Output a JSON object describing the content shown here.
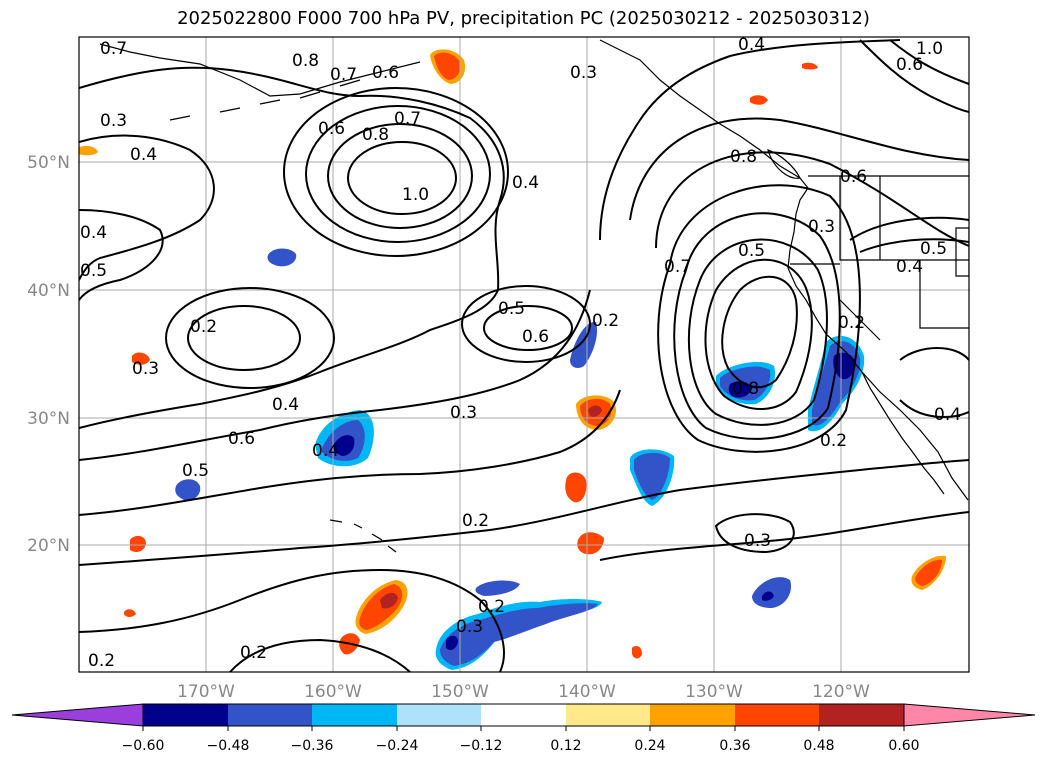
{
  "title": "2025022800 F000 700 hPa PV, precipitation PC (2025030212 - 2025030312)",
  "map": {
    "lat_ticks": [
      "50°N",
      "40°N",
      "30°N",
      "20°N"
    ],
    "lon_ticks": [
      "170°W",
      "160°W",
      "150°W",
      "140°W",
      "130°W",
      "120°W"
    ],
    "gridlines": true
  },
  "contours": {
    "variable": "700 hPa PV",
    "labels": [
      "0.7",
      "0.8",
      "0.7",
      "0.6",
      "0.3",
      "0.4",
      "0.6",
      "0.8",
      "0.7",
      "1.0",
      "0.4",
      "0.5",
      "0.4",
      "0.2",
      "0.3",
      "0.4",
      "0.6",
      "0.5",
      "0.5",
      "0.6",
      "0.3",
      "0.2",
      "0.7",
      "0.5",
      "0.3",
      "0.4",
      "0.2",
      "0.6",
      "0.3",
      "0.4",
      "0.2",
      "0.8",
      "0.2",
      "0.2",
      "0.3",
      "0.2",
      "0.2",
      "0.3",
      "0.4",
      "0.4",
      "1.0",
      "0.6",
      "0.5",
      "0.8"
    ]
  },
  "colorbar": {
    "variable": "precipitation PC",
    "ticks": [
      "−0.60",
      "−0.48",
      "−0.36",
      "−0.24",
      "−0.12",
      "0.12",
      "0.24",
      "0.36",
      "0.48",
      "0.60"
    ],
    "colors": [
      "#9b3fdc",
      "#00008c",
      "#3353c9",
      "#00b7f5",
      "#aee2fa",
      "#ffffff",
      "#ffe98a",
      "#ffa200",
      "#ff4500",
      "#b22222",
      "#ff86a8"
    ],
    "extend": "both"
  }
}
